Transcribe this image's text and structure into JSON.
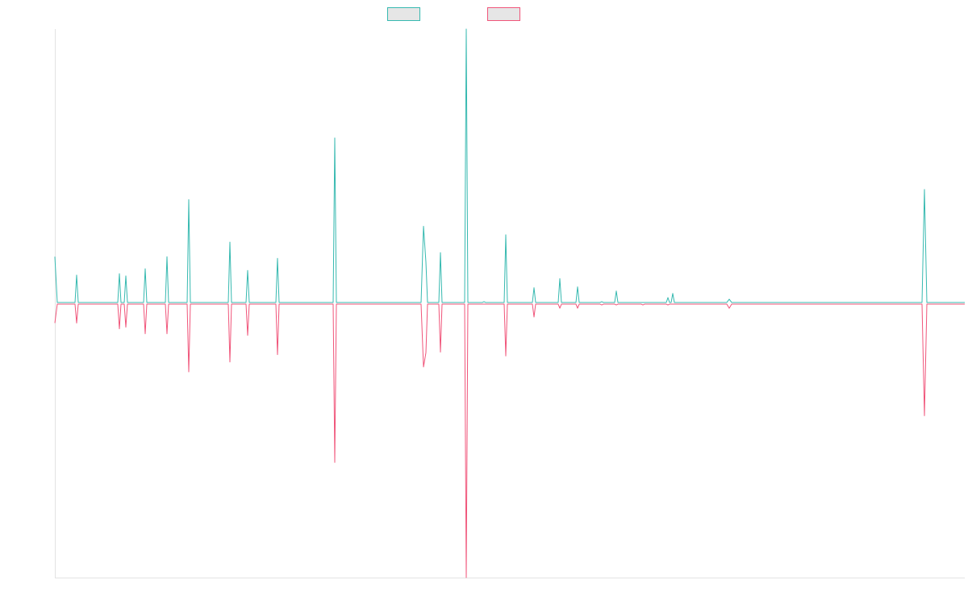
{
  "colors": {
    "series_a": "#36b9b0",
    "series_b": "#f0557a",
    "axis": "#e3e3e3",
    "legend_fill": "#e6e6e6"
  },
  "chart_data": {
    "type": "line",
    "title": "",
    "xlabel": "",
    "ylabel": "",
    "grid": false,
    "legend_position": "top-center",
    "x_range": [
      0,
      1128
    ],
    "ylim": [
      -1.0,
      1.0
    ],
    "series": [
      {
        "color": "#36b9b0",
        "points": [
          [
            0,
            0.17
          ],
          [
            3,
            0.003
          ],
          [
            25,
            0.003
          ],
          [
            27,
            0.103
          ],
          [
            29,
            0.003
          ],
          [
            78,
            0.003
          ],
          [
            80,
            0.108
          ],
          [
            82,
            0.003
          ],
          [
            86,
            0.003
          ],
          [
            88,
            0.1
          ],
          [
            90,
            0.003
          ],
          [
            110,
            0.003
          ],
          [
            112,
            0.126
          ],
          [
            114,
            0.003
          ],
          [
            137,
            0.003
          ],
          [
            139,
            0.17
          ],
          [
            141,
            0.003
          ],
          [
            164,
            0.003
          ],
          [
            166,
            0.378
          ],
          [
            168,
            0.003
          ],
          [
            215,
            0.003
          ],
          [
            217,
            0.223
          ],
          [
            219,
            0.003
          ],
          [
            237,
            0.003
          ],
          [
            239,
            0.12
          ],
          [
            241,
            0.003
          ],
          [
            274,
            0.003
          ],
          [
            276,
            0.164
          ],
          [
            278,
            0.003
          ],
          [
            345,
            0.003
          ],
          [
            347,
            0.603
          ],
          [
            349,
            0.003
          ],
          [
            454,
            0.003
          ],
          [
            457,
            0.281
          ],
          [
            460,
            0.15
          ],
          [
            462,
            0.003
          ],
          [
            476,
            0.003
          ],
          [
            478,
            0.185
          ],
          [
            480,
            0.003
          ],
          [
            508,
            0.003
          ],
          [
            510,
            1.0
          ],
          [
            512,
            0.003
          ],
          [
            530,
            0.003
          ],
          [
            532,
            0.006
          ],
          [
            534,
            0.003
          ],
          [
            557,
            0.003
          ],
          [
            559,
            0.25
          ],
          [
            561,
            0.003
          ],
          [
            592,
            0.003
          ],
          [
            594,
            0.057
          ],
          [
            596,
            0.003
          ],
          [
            624,
            0.003
          ],
          [
            626,
            0.09
          ],
          [
            628,
            0.003
          ],
          [
            646,
            0.003
          ],
          [
            648,
            0.06
          ],
          [
            650,
            0.003
          ],
          [
            676,
            0.003
          ],
          [
            678,
            0.006
          ],
          [
            680,
            0.003
          ],
          [
            694,
            0.003
          ],
          [
            696,
            0.045
          ],
          [
            698,
            0.003
          ],
          [
            758,
            0.003
          ],
          [
            760,
            0.021
          ],
          [
            762,
            0.003
          ],
          [
            764,
            0.003
          ],
          [
            766,
            0.036
          ],
          [
            768,
            0.003
          ],
          [
            833,
            0.003
          ],
          [
            836,
            0.015
          ],
          [
            839,
            0.003
          ],
          [
            1075,
            0.003
          ],
          [
            1078,
            0.415
          ],
          [
            1081,
            0.003
          ],
          [
            1128,
            0.003
          ]
        ]
      },
      {
        "color": "#f0557a",
        "points": [
          [
            0,
            -0.072
          ],
          [
            3,
            -0.003
          ],
          [
            25,
            -0.003
          ],
          [
            27,
            -0.072
          ],
          [
            29,
            -0.003
          ],
          [
            78,
            -0.003
          ],
          [
            80,
            -0.093
          ],
          [
            82,
            -0.003
          ],
          [
            86,
            -0.003
          ],
          [
            88,
            -0.087
          ],
          [
            90,
            -0.003
          ],
          [
            110,
            -0.003
          ],
          [
            112,
            -0.111
          ],
          [
            114,
            -0.003
          ],
          [
            137,
            -0.003
          ],
          [
            139,
            -0.111
          ],
          [
            141,
            -0.003
          ],
          [
            164,
            -0.003
          ],
          [
            166,
            -0.25
          ],
          [
            168,
            -0.003
          ],
          [
            215,
            -0.003
          ],
          [
            217,
            -0.214
          ],
          [
            219,
            -0.003
          ],
          [
            237,
            -0.003
          ],
          [
            239,
            -0.117
          ],
          [
            241,
            -0.003
          ],
          [
            274,
            -0.003
          ],
          [
            276,
            -0.187
          ],
          [
            278,
            -0.003
          ],
          [
            345,
            -0.003
          ],
          [
            347,
            -0.58
          ],
          [
            349,
            -0.003
          ],
          [
            454,
            -0.003
          ],
          [
            457,
            -0.232
          ],
          [
            460,
            -0.18
          ],
          [
            462,
            -0.003
          ],
          [
            476,
            -0.003
          ],
          [
            478,
            -0.178
          ],
          [
            480,
            -0.003
          ],
          [
            508,
            -0.003
          ],
          [
            510,
            -1.0
          ],
          [
            512,
            -0.003
          ],
          [
            530,
            -0.003
          ],
          [
            532,
            -0.003
          ],
          [
            557,
            -0.003
          ],
          [
            559,
            -0.192
          ],
          [
            561,
            -0.003
          ],
          [
            592,
            -0.003
          ],
          [
            594,
            -0.05
          ],
          [
            596,
            -0.003
          ],
          [
            624,
            -0.003
          ],
          [
            626,
            -0.018
          ],
          [
            628,
            -0.003
          ],
          [
            646,
            -0.003
          ],
          [
            648,
            -0.018
          ],
          [
            650,
            -0.003
          ],
          [
            676,
            -0.003
          ],
          [
            678,
            -0.006
          ],
          [
            680,
            -0.003
          ],
          [
            694,
            -0.003
          ],
          [
            696,
            -0.006
          ],
          [
            698,
            -0.003
          ],
          [
            727,
            -0.003
          ],
          [
            729,
            -0.006
          ],
          [
            731,
            -0.003
          ],
          [
            758,
            -0.003
          ],
          [
            760,
            -0.006
          ],
          [
            762,
            -0.003
          ],
          [
            833,
            -0.003
          ],
          [
            836,
            -0.018
          ],
          [
            839,
            -0.003
          ],
          [
            1075,
            -0.003
          ],
          [
            1078,
            -0.41
          ],
          [
            1081,
            -0.003
          ],
          [
            1128,
            -0.003
          ]
        ]
      }
    ]
  }
}
